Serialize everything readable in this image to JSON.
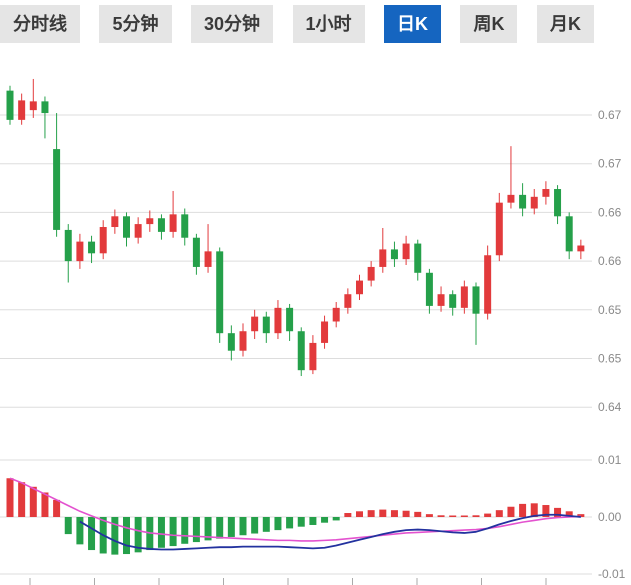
{
  "tabs": {
    "items": [
      {
        "label": "分时线"
      },
      {
        "label": "5分钟"
      },
      {
        "label": "30分钟"
      },
      {
        "label": "1小时"
      },
      {
        "label": "日K"
      },
      {
        "label": "周K"
      },
      {
        "label": "月K"
      }
    ],
    "active_index": 4
  },
  "colors": {
    "up": "#e23a3c",
    "down": "#25a04a",
    "dif_line": "#23329f",
    "dea_line": "#e352cf",
    "grid": "#dddddd",
    "axis_label": "#8a8a8a",
    "tick": "#aaaaaa",
    "tab_active_bg": "#1565c0",
    "tab_bg": "#e5e5e5",
    "tab_text": "#3a3a3a"
  },
  "chart_data": {
    "type": "candlestick",
    "title": "",
    "xlabel": "",
    "ylabel": "",
    "legend": [],
    "grid": true,
    "main": {
      "ylim": [
        0.638,
        0.674
      ],
      "ylabels": [
        {
          "value": 0.67,
          "label": "0.67"
        },
        {
          "value": 0.665,
          "label": "0.67"
        },
        {
          "value": 0.66,
          "label": "0.66"
        },
        {
          "value": 0.655,
          "label": "0.66"
        },
        {
          "value": 0.65,
          "label": "0.65"
        },
        {
          "value": 0.645,
          "label": "0.65"
        },
        {
          "value": 0.64,
          "label": "0.64"
        }
      ],
      "candles_ohlc": [
        [
          0.6725,
          0.673,
          0.669,
          0.6695
        ],
        [
          0.6695,
          0.6722,
          0.669,
          0.6715
        ],
        [
          0.6705,
          0.6737,
          0.6697,
          0.6714
        ],
        [
          0.6714,
          0.6719,
          0.6676,
          0.6702
        ],
        [
          0.6665,
          0.6702,
          0.6575,
          0.6582
        ],
        [
          0.6582,
          0.6588,
          0.6528,
          0.655
        ],
        [
          0.655,
          0.6578,
          0.6542,
          0.657
        ],
        [
          0.657,
          0.6576,
          0.6548,
          0.6558
        ],
        [
          0.6558,
          0.6592,
          0.6552,
          0.6585
        ],
        [
          0.6585,
          0.6603,
          0.6578,
          0.6596
        ],
        [
          0.6596,
          0.66,
          0.6565,
          0.6574
        ],
        [
          0.6574,
          0.6595,
          0.6568,
          0.6588
        ],
        [
          0.6588,
          0.6602,
          0.658,
          0.6594
        ],
        [
          0.6594,
          0.6598,
          0.6572,
          0.658
        ],
        [
          0.658,
          0.6622,
          0.6574,
          0.6598
        ],
        [
          0.6598,
          0.6604,
          0.6566,
          0.6574
        ],
        [
          0.6574,
          0.6578,
          0.6536,
          0.6544
        ],
        [
          0.6544,
          0.6588,
          0.6538,
          0.656
        ],
        [
          0.656,
          0.6564,
          0.6466,
          0.6476
        ],
        [
          0.6476,
          0.6484,
          0.6448,
          0.6458
        ],
        [
          0.6458,
          0.6486,
          0.6452,
          0.6478
        ],
        [
          0.6478,
          0.65,
          0.647,
          0.6493
        ],
        [
          0.6493,
          0.6498,
          0.6466,
          0.6476
        ],
        [
          0.6476,
          0.651,
          0.647,
          0.6502
        ],
        [
          0.6502,
          0.6506,
          0.6468,
          0.6478
        ],
        [
          0.6478,
          0.6482,
          0.6432,
          0.6438
        ],
        [
          0.6438,
          0.6474,
          0.6434,
          0.6466
        ],
        [
          0.6466,
          0.6494,
          0.646,
          0.6488
        ],
        [
          0.6488,
          0.6508,
          0.6482,
          0.6502
        ],
        [
          0.6502,
          0.6522,
          0.6496,
          0.6516
        ],
        [
          0.6516,
          0.6536,
          0.651,
          0.653
        ],
        [
          0.653,
          0.655,
          0.6524,
          0.6544
        ],
        [
          0.6544,
          0.6584,
          0.6538,
          0.6562
        ],
        [
          0.6562,
          0.657,
          0.6544,
          0.6552
        ],
        [
          0.6552,
          0.6576,
          0.6546,
          0.6568
        ],
        [
          0.6568,
          0.6572,
          0.653,
          0.6538
        ],
        [
          0.6538,
          0.6542,
          0.6496,
          0.6504
        ],
        [
          0.6504,
          0.6524,
          0.6498,
          0.6516
        ],
        [
          0.6516,
          0.652,
          0.6494,
          0.6502
        ],
        [
          0.6502,
          0.653,
          0.6496,
          0.6524
        ],
        [
          0.6524,
          0.6528,
          0.6464,
          0.6496
        ],
        [
          0.6496,
          0.6566,
          0.649,
          0.6556
        ],
        [
          0.6556,
          0.662,
          0.655,
          0.661
        ],
        [
          0.661,
          0.6668,
          0.6604,
          0.6618
        ],
        [
          0.6618,
          0.663,
          0.6596,
          0.6604
        ],
        [
          0.6604,
          0.6624,
          0.6598,
          0.6616
        ],
        [
          0.6616,
          0.6632,
          0.6608,
          0.6624
        ],
        [
          0.6624,
          0.6628,
          0.6588,
          0.6596
        ],
        [
          0.6596,
          0.66,
          0.6552,
          0.656
        ],
        [
          0.656,
          0.6572,
          0.6552,
          0.6566
        ]
      ]
    },
    "macd": {
      "ylim": [
        -0.011,
        0.011
      ],
      "ylabels": [
        {
          "value": 0.01,
          "label": "0.01"
        },
        {
          "value": 0.0,
          "label": "0.00"
        },
        {
          "value": -0.01,
          "label": "-0.01"
        }
      ],
      "histogram": [
        0.0068,
        0.0061,
        0.0053,
        0.0043,
        0.003,
        -0.003,
        -0.0048,
        -0.0058,
        -0.0064,
        -0.0066,
        -0.0065,
        -0.0062,
        -0.0058,
        -0.0054,
        -0.0051,
        -0.0047,
        -0.0044,
        -0.0041,
        -0.0038,
        -0.0035,
        -0.0032,
        -0.0029,
        -0.0026,
        -0.0023,
        -0.002,
        -0.0017,
        -0.0014,
        -0.001,
        -0.0006,
        0.0007,
        0.001,
        0.0012,
        0.0013,
        0.0012,
        0.0011,
        0.0009,
        0.0005,
        0.0003,
        0.0002,
        0.0002,
        0.0003,
        0.0006,
        0.0012,
        0.0018,
        0.0023,
        0.0024,
        0.0021,
        0.0016,
        0.001,
        0.0005
      ],
      "dif": [
        null,
        null,
        null,
        null,
        null,
        null,
        -0.0008,
        -0.002,
        -0.0032,
        -0.0042,
        -0.005,
        -0.0054,
        -0.0056,
        -0.0057,
        -0.0057,
        -0.0056,
        -0.0055,
        -0.0054,
        -0.0053,
        -0.0053,
        -0.0052,
        -0.0052,
        -0.0052,
        -0.0052,
        -0.0053,
        -0.0054,
        -0.0055,
        -0.0054,
        -0.005,
        -0.0045,
        -0.004,
        -0.0035,
        -0.003,
        -0.0026,
        -0.0023,
        -0.0022,
        -0.0023,
        -0.0025,
        -0.0027,
        -0.0028,
        -0.0026,
        -0.002,
        -0.0013,
        -0.0007,
        -0.0002,
        0.0002,
        0.0004,
        0.0004,
        0.0002,
        0.0
      ],
      "dea": [
        0.0068,
        0.006,
        0.005,
        0.004,
        0.003,
        0.002,
        0.001,
        0.0002,
        -0.0006,
        -0.0013,
        -0.0019,
        -0.0024,
        -0.0028,
        -0.003,
        -0.0032,
        -0.0033,
        -0.0034,
        -0.0035,
        -0.0036,
        -0.0037,
        -0.0038,
        -0.0039,
        -0.004,
        -0.0041,
        -0.0041,
        -0.0042,
        -0.0042,
        -0.0041,
        -0.004,
        -0.0038,
        -0.0036,
        -0.0034,
        -0.0032,
        -0.003,
        -0.0028,
        -0.0027,
        -0.0026,
        -0.0025,
        -0.0024,
        -0.0023,
        -0.0022,
        -0.002,
        -0.0017,
        -0.0013,
        -0.0009,
        -0.0006,
        -0.0003,
        -0.0001,
        0.0,
        0.0001
      ]
    }
  }
}
